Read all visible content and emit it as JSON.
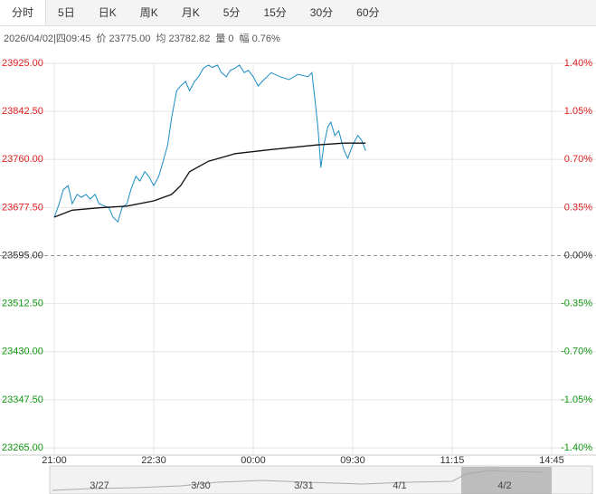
{
  "tabs": [
    "分时",
    "5日",
    "日K",
    "周K",
    "月K",
    "5分",
    "15分",
    "30分",
    "60分"
  ],
  "info": [
    "2026/04/02|四09:45",
    "价 23775.00",
    "均 23782.82",
    "量 0",
    "幅 0.76%"
  ],
  "chart_data": {
    "type": "line",
    "xlim": [
      0,
      5
    ],
    "xticks": [
      {
        "value": 0,
        "label": "21:00"
      },
      {
        "value": 1,
        "label": "22:30"
      },
      {
        "value": 2,
        "label": "00:00"
      },
      {
        "value": 3,
        "label": "09:30"
      },
      {
        "value": 4,
        "label": "11:15"
      },
      {
        "value": 5,
        "label": "14:45"
      }
    ],
    "ylim": [
      23265,
      23925
    ],
    "yticks": [
      {
        "value": 23925,
        "label": "23925.00"
      },
      {
        "value": 23842.5,
        "label": "23842.50"
      },
      {
        "value": 23760,
        "label": "23760.00"
      },
      {
        "value": 23677.5,
        "label": "23677.50"
      },
      {
        "value": 23595,
        "label": "23595.00"
      },
      {
        "value": 23512.5,
        "label": "23512.50"
      },
      {
        "value": 23430,
        "label": "23430.00"
      },
      {
        "value": 23347.5,
        "label": "23347.50"
      },
      {
        "value": 23265,
        "label": "23265.00"
      }
    ],
    "y2lim": [
      -1.4,
      1.4
    ],
    "y2ticks": [
      {
        "value": 1.4,
        "label": "1.40%"
      },
      {
        "value": 1.05,
        "label": "1.05%"
      },
      {
        "value": 0.7,
        "label": "0.70%"
      },
      {
        "value": 0.35,
        "label": "0.35%"
      },
      {
        "value": 0,
        "label": "0.00%"
      },
      {
        "value": -0.35,
        "label": "-0.35%"
      },
      {
        "value": -0.7,
        "label": "-0.70%"
      },
      {
        "value": -1.05,
        "label": "-1.05%"
      },
      {
        "value": -1.4,
        "label": "-1.40%"
      }
    ],
    "up_color": "#e02020",
    "down_color": "#119911",
    "flat_color": "#333333",
    "grid": true,
    "series": [
      {
        "color": "#1a8cc4",
        "x": [
          0,
          0.05,
          0.09,
          0.14,
          0.18,
          0.23,
          0.27,
          0.32,
          0.36,
          0.41,
          0.45,
          0.55,
          0.59,
          0.64,
          0.68,
          0.73,
          0.77,
          0.82,
          0.86,
          0.91,
          0.95,
          1.0,
          1.05,
          1.09,
          1.14,
          1.18,
          1.23,
          1.27,
          1.32,
          1.36,
          1.41,
          1.45,
          1.5,
          1.55,
          1.59,
          1.64,
          1.68,
          1.73,
          1.77,
          1.82,
          1.86,
          1.91,
          1.95,
          2.0,
          2.05,
          2.09,
          2.14,
          2.18,
          2.27,
          2.36,
          2.45,
          2.55,
          2.59,
          2.62,
          2.65,
          2.68,
          2.71,
          2.75,
          2.78,
          2.82,
          2.86,
          2.91,
          2.95,
          3.0,
          3.05,
          3.09,
          3.13
        ],
        "values": [
          23661,
          23684,
          23708,
          23715,
          23684,
          23700,
          23695,
          23700,
          23692,
          23700,
          23684,
          23677,
          23661,
          23653,
          23677,
          23684,
          23708,
          23731,
          23723,
          23739,
          23731,
          23715,
          23731,
          23754,
          23785,
          23832,
          23878,
          23886,
          23894,
          23878,
          23894,
          23902,
          23917,
          23922,
          23918,
          23922,
          23909,
          23902,
          23913,
          23917,
          23922,
          23909,
          23913,
          23902,
          23886,
          23894,
          23902,
          23909,
          23902,
          23897,
          23906,
          23902,
          23909,
          23863,
          23816,
          23746,
          23785,
          23816,
          23824,
          23801,
          23809,
          23777,
          23762,
          23785,
          23801,
          23793,
          23775
        ]
      },
      {
        "color": "#111111",
        "x": [
          0,
          0.18,
          0.45,
          0.73,
          1.0,
          1.18,
          1.27,
          1.36,
          1.55,
          1.82,
          2.18,
          2.64,
          2.91,
          3.13
        ],
        "values": [
          23661,
          23673,
          23677,
          23680,
          23689,
          23700,
          23715,
          23739,
          23757,
          23770,
          23777,
          23785,
          23788,
          23788
        ]
      }
    ]
  },
  "navigator": [
    "3/27",
    "3/30",
    "3/31",
    "4/1",
    "4/2"
  ]
}
